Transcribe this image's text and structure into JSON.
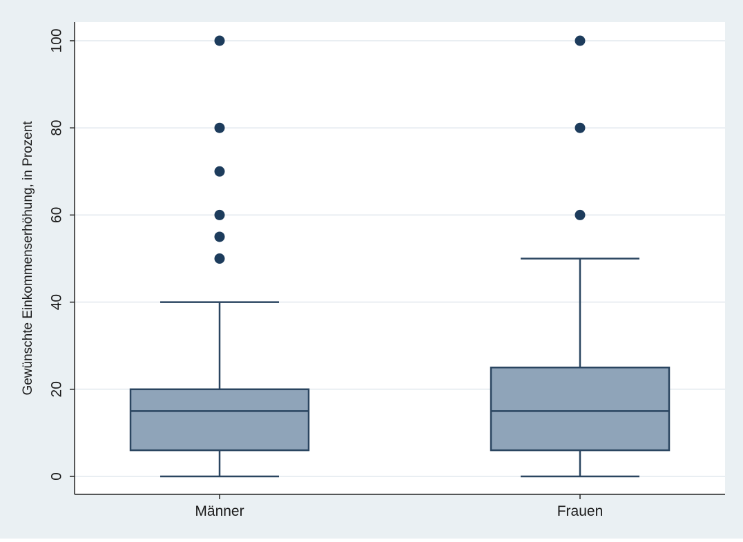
{
  "chart_data": {
    "type": "box",
    "title": "",
    "xlabel": "",
    "ylabel": "Gewünschte Einkommenserhöhung, in Prozent",
    "ylim": [
      0,
      100
    ],
    "y_ticks": [
      0,
      20,
      40,
      60,
      80,
      100
    ],
    "y_tick_labels": [
      "0",
      "20",
      "40",
      "60",
      "80",
      "100"
    ],
    "grid": true,
    "legend": "none",
    "categories": [
      "Männer",
      "Frauen"
    ],
    "boxes": [
      {
        "category": "Männer",
        "whisker_low": 0,
        "q1": 6,
        "median": 15,
        "q3": 20,
        "whisker_high": 40,
        "outliers": [
          50,
          55,
          60,
          70,
          80,
          100
        ]
      },
      {
        "category": "Frauen",
        "whisker_low": 0,
        "q1": 6,
        "median": 15,
        "q3": 25,
        "whisker_high": 50,
        "outliers": [
          60,
          80,
          100
        ]
      }
    ],
    "colors": {
      "outer_background": "#eaf0f3",
      "plot_background": "#ffffff",
      "gridline": "#e9eef2",
      "box_fill": "#8fa4b9",
      "box_stroke": "#2a4560",
      "outlier": "#1d3c5c",
      "axis": "#222222"
    }
  }
}
